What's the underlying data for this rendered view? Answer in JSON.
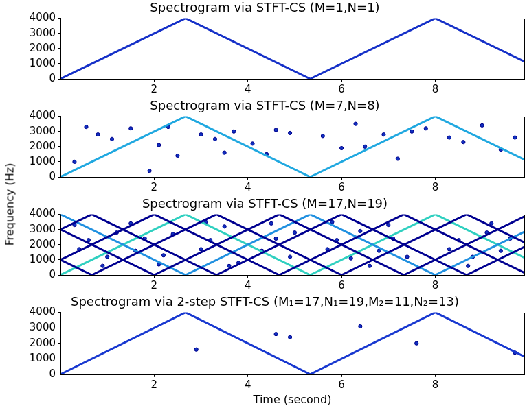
{
  "chart_data": [
    {
      "type": "line",
      "title": "Spectrogram via STFT-CS (M=1,N=1)",
      "xlim": [
        0,
        9.9
      ],
      "xticks": [
        2,
        4,
        6,
        8
      ],
      "ylim": [
        0,
        4000
      ],
      "yticks": [
        0,
        1000,
        2000,
        3000,
        4000
      ],
      "grid": false,
      "series": [
        {
          "type": "line",
          "color": "#1530c8",
          "line_style": "solid",
          "x": [
            0,
            2.67,
            5.33,
            8,
            9.9
          ],
          "values": [
            0,
            4000,
            0,
            4000,
            1150
          ]
        }
      ]
    },
    {
      "type": "line",
      "title": "Spectrogram via STFT-CS (M=7,N=8)",
      "ylabel": "Frequency (Hz)",
      "xlim": [
        0,
        9.9
      ],
      "xticks": [
        2,
        4,
        6,
        8
      ],
      "ylim": [
        0,
        4000
      ],
      "yticks": [
        0,
        1000,
        2000,
        3000,
        4000
      ],
      "grid": false,
      "series": [
        {
          "type": "line",
          "color": "#20a8e0",
          "line_style": "solid",
          "x": [
            0,
            2.67,
            5.33,
            8,
            9.9
          ],
          "values": [
            0,
            4000,
            0,
            4000,
            1150
          ]
        },
        {
          "type": "scatter",
          "color": "#1030c0",
          "marker": "circle",
          "x": [
            0.3,
            0.55,
            0.8,
            1.1,
            1.5,
            1.9,
            2.1,
            2.3,
            2.5,
            3.0,
            3.3,
            3.5,
            3.7,
            4.1,
            4.4,
            4.6,
            4.9,
            5.6,
            6.0,
            6.3,
            6.5,
            6.9,
            7.2,
            7.5,
            7.8,
            8.3,
            8.6,
            9.0,
            9.4,
            9.7
          ],
          "values": [
            1000,
            3300,
            2800,
            2500,
            3200,
            400,
            2100,
            3300,
            1400,
            2800,
            2500,
            1600,
            3000,
            2200,
            1500,
            3100,
            2900,
            2700,
            1900,
            3500,
            2000,
            2800,
            1200,
            3000,
            3200,
            2600,
            2300,
            3400,
            1800,
            2600
          ]
        }
      ]
    },
    {
      "type": "line",
      "title": "Spectrogram via STFT-CS (M=17,N=19)",
      "xlim": [
        0,
        9.9
      ],
      "xticks": [
        2,
        4,
        6,
        8
      ],
      "ylim": [
        0,
        4000
      ],
      "yticks": [
        0,
        1000,
        2000,
        3000,
        4000
      ],
      "grid": false,
      "series": [
        {
          "type": "line",
          "color": "#000090",
          "line_style": "solid",
          "x": [
            0,
            0.67,
            3.33,
            6.0,
            8.67,
            9.9
          ],
          "values": [
            1000,
            0,
            4000,
            0,
            4000,
            2150
          ]
        },
        {
          "type": "line",
          "color": "#000090",
          "line_style": "solid",
          "x": [
            0,
            2.0,
            4.67,
            7.33,
            9.9
          ],
          "values": [
            1000,
            4000,
            0,
            4000,
            150
          ]
        },
        {
          "type": "line",
          "color": "#000090",
          "line_style": "solid",
          "x": [
            0,
            0.67,
            3.33,
            6.0,
            8.67,
            9.9
          ],
          "values": [
            3000,
            4000,
            0,
            4000,
            0,
            1850
          ]
        },
        {
          "type": "line",
          "color": "#000090",
          "line_style": "solid",
          "x": [
            0,
            2.0,
            4.67,
            7.33,
            9.9
          ],
          "values": [
            3000,
            0,
            4000,
            0,
            3850
          ]
        },
        {
          "type": "line",
          "color": "#2090e0",
          "line_style": "solid",
          "x": [
            0,
            2.67,
            5.33,
            8,
            9.9
          ],
          "values": [
            4000,
            0,
            4000,
            0,
            2850
          ]
        },
        {
          "type": "line",
          "color": "#30d0c0",
          "line_style": "solid",
          "x": [
            0,
            2.67,
            5.33,
            8,
            9.9
          ],
          "values": [
            0,
            4000,
            0,
            4000,
            1150
          ]
        },
        {
          "type": "scatter",
          "color": "#1030c0",
          "marker": "circle",
          "x": [
            0.4,
            0.6,
            1.0,
            1.2,
            1.6,
            1.8,
            2.2,
            2.4,
            0.3,
            0.9,
            1.5,
            2.1,
            3.0,
            3.2,
            3.5,
            3.8,
            4.3,
            4.6,
            4.9,
            3.1,
            3.6,
            4.5,
            5.0,
            5.7,
            5.9,
            6.2,
            6.4,
            6.8,
            7.1,
            7.4,
            5.8,
            6.6,
            7.0,
            8.3,
            8.5,
            8.8,
            9.1,
            9.4,
            9.6,
            8.7,
            9.2
          ],
          "values": [
            1700,
            2300,
            1200,
            2800,
            1600,
            2400,
            1300,
            2700,
            3300,
            600,
            3400,
            700,
            1700,
            2300,
            3200,
            800,
            1600,
            2400,
            1200,
            3500,
            600,
            3400,
            2800,
            1700,
            2300,
            1100,
            2900,
            1600,
            2400,
            1200,
            3500,
            600,
            3300,
            1700,
            2300,
            1200,
            2800,
            1600,
            2400,
            600,
            3400
          ]
        }
      ]
    },
    {
      "type": "line",
      "title": "Spectrogram via 2-step STFT-CS (M₁=17,N₁=19,M₂=11,N₂=13)",
      "xlabel": "Time (second)",
      "xlim": [
        0,
        9.9
      ],
      "xticks": [
        2,
        4,
        6,
        8
      ],
      "ylim": [
        0,
        4000
      ],
      "yticks": [
        0,
        1000,
        2000,
        3000,
        4000
      ],
      "grid": false,
      "series": [
        {
          "type": "line",
          "color": "#1838d0",
          "line_style": "solid",
          "x": [
            0,
            2.67,
            5.33,
            8,
            9.9
          ],
          "values": [
            0,
            4000,
            0,
            4000,
            1150
          ]
        },
        {
          "type": "scatter",
          "color": "#1030c0",
          "marker": "circle",
          "x": [
            2.9,
            4.6,
            4.9,
            6.4,
            7.6,
            9.7
          ],
          "values": [
            1600,
            2600,
            2400,
            3100,
            2000,
            1400
          ]
        }
      ]
    }
  ]
}
